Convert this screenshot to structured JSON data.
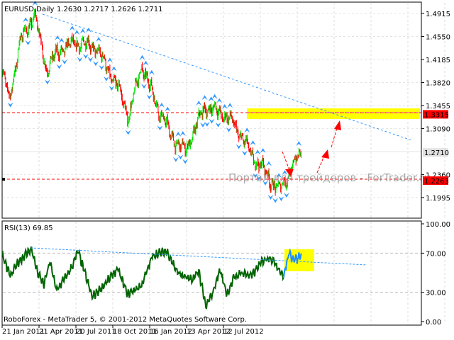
{
  "chart_data": [
    {
      "type": "candlestick",
      "title": "EURUSD,Daily",
      "ohlc_last": {
        "open": "1.2630",
        "high": "1.2717",
        "low": "1.2626",
        "close": "1.2711"
      },
      "ylim": [
        1.18,
        1.515
      ],
      "y_ticks": [
        "1.4915",
        "1.4550",
        "1.4185",
        "1.3820",
        "1.3455",
        "1.3090",
        "1.2360",
        "1.1995"
      ],
      "price_labels": [
        {
          "value": "1.3315",
          "color": "#ff0000"
        },
        {
          "value": "1.2710",
          "color": "#e0e0e0"
        },
        {
          "value": "1.2263",
          "color": "#ff0000"
        }
      ],
      "bull_color": "#00e000",
      "bear_color": "#ff0000",
      "fractal_color": "#3399ff",
      "path_anchors_bar_price": [
        [
          0,
          1.4
        ],
        [
          12,
          1.355
        ],
        [
          30,
          1.445
        ],
        [
          55,
          1.49
        ],
        [
          75,
          1.405
        ],
        [
          100,
          1.435
        ],
        [
          130,
          1.445
        ],
        [
          160,
          1.437
        ],
        [
          200,
          1.367
        ],
        [
          215,
          1.327
        ],
        [
          237,
          1.41
        ],
        [
          255,
          1.365
        ],
        [
          285,
          1.3
        ],
        [
          310,
          1.272
        ],
        [
          345,
          1.344
        ],
        [
          380,
          1.33
        ],
        [
          405,
          1.3
        ],
        [
          420,
          1.271
        ],
        [
          440,
          1.249
        ],
        [
          470,
          1.21
        ],
        [
          490,
          1.243
        ],
        [
          508,
          1.2711
        ]
      ],
      "resistance_zone": {
        "from": 1.325,
        "to": 1.34
      },
      "watermark": "Портал для трейдеров - ForTrader.ru"
    },
    {
      "type": "line",
      "title": "RSI(13) 69.85",
      "ylim": [
        0,
        100
      ],
      "y_ticks": [
        "100.00",
        "70.00",
        "30.00",
        "0.00"
      ],
      "line_color": "#006400",
      "highlight_color": "#1e90ff",
      "path_anchors_bar_value": [
        [
          0,
          68
        ],
        [
          14,
          46
        ],
        [
          26,
          60
        ],
        [
          50,
          75
        ],
        [
          60,
          50
        ],
        [
          71,
          38
        ],
        [
          81,
          61
        ],
        [
          93,
          32
        ],
        [
          117,
          54
        ],
        [
          129,
          72
        ],
        [
          153,
          25
        ],
        [
          177,
          40
        ],
        [
          196,
          54
        ],
        [
          213,
          28
        ],
        [
          237,
          37
        ],
        [
          256,
          68
        ],
        [
          280,
          72
        ],
        [
          298,
          50
        ],
        [
          322,
          42
        ],
        [
          334,
          52
        ],
        [
          346,
          15
        ],
        [
          358,
          30
        ],
        [
          370,
          53
        ],
        [
          382,
          28
        ],
        [
          394,
          45
        ],
        [
          406,
          50
        ],
        [
          424,
          47
        ],
        [
          442,
          62
        ],
        [
          455,
          66
        ],
        [
          466,
          58
        ],
        [
          478,
          46
        ],
        [
          487,
          69
        ],
        [
          500,
          63
        ],
        [
          508,
          69.85
        ]
      ]
    }
  ],
  "x_ticks": [
    "21 Jan 2011",
    "21 Apr 2011",
    "20 Jul 2011",
    "18 Oct 2011",
    "16 Jan 2012",
    "13 Apr 2012",
    "12 Jul 2012"
  ],
  "footer": "RoboForex - MetaTrader 5, © 2001-2012 MetaQuotes Software Corp."
}
